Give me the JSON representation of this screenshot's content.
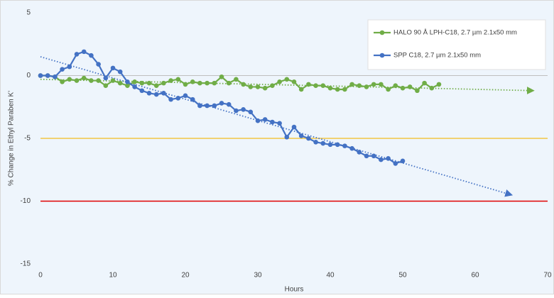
{
  "chart_data": {
    "type": "line",
    "x_label": "Hours",
    "y_label": "% Change in Ethyl Paraben K'",
    "xlim": [
      0,
      70
    ],
    "xticks": [
      0,
      10,
      20,
      30,
      40,
      50,
      60,
      70
    ],
    "ylim": [
      -15,
      5
    ],
    "yticks": [
      5,
      0,
      -5,
      -10,
      -15
    ],
    "legend": "upper right",
    "reference_lines": [
      {
        "value": 0,
        "color": "#bfbfbf"
      },
      {
        "value": -5,
        "color": "#f2c744"
      },
      {
        "value": -10,
        "color": "#e00000"
      }
    ],
    "series": [
      {
        "name": "HALO 90 Å LPH-C18, 2.7 µm 2.1x50 mm",
        "color": "#70ad47",
        "x": [
          0,
          1,
          2,
          3,
          4,
          5,
          6,
          7,
          8,
          9,
          10,
          11,
          12,
          13,
          14,
          15,
          16,
          17,
          18,
          19,
          20,
          21,
          22,
          23,
          24,
          25,
          26,
          27,
          28,
          29,
          30,
          31,
          32,
          33,
          34,
          35,
          36,
          37,
          38,
          39,
          40,
          41,
          42,
          43,
          44,
          45,
          46,
          47,
          48,
          49,
          50,
          51,
          52,
          53,
          54,
          55
        ],
        "values": [
          0,
          0,
          -0.1,
          -0.5,
          -0.3,
          -0.4,
          -0.2,
          -0.4,
          -0.4,
          -0.8,
          -0.4,
          -0.6,
          -0.8,
          -0.5,
          -0.6,
          -0.6,
          -0.8,
          -0.6,
          -0.4,
          -0.3,
          -0.7,
          -0.5,
          -0.6,
          -0.6,
          -0.6,
          -0.1,
          -0.6,
          -0.3,
          -0.7,
          -0.9,
          -0.9,
          -1.0,
          -0.8,
          -0.5,
          -0.3,
          -0.5,
          -1.1,
          -0.7,
          -0.8,
          -0.8,
          -1.0,
          -1.1,
          -1.1,
          -0.7,
          -0.8,
          -0.9,
          -0.7,
          -0.7,
          -1.1,
          -0.8,
          -1.0,
          -0.9,
          -1.2,
          -0.6,
          -1.0,
          -0.7
        ],
        "trendline": {
          "x": [
            0,
            68
          ],
          "values": [
            -0.3,
            -1.2
          ]
        }
      },
      {
        "name": "SPP C18, 2.7 µm 2.1x50 mm",
        "color": "#4472c4",
        "x": [
          0,
          1,
          2,
          3,
          4,
          5,
          6,
          7,
          8,
          9,
          10,
          11,
          12,
          13,
          14,
          15,
          16,
          17,
          18,
          19,
          20,
          21,
          22,
          23,
          24,
          25,
          26,
          27,
          28,
          29,
          30,
          31,
          32,
          33,
          34,
          35,
          36,
          37,
          38,
          39,
          40,
          41,
          42,
          43,
          44,
          45,
          46,
          47,
          48,
          49,
          50
        ],
        "values": [
          0,
          0,
          -0.1,
          0.5,
          0.7,
          1.7,
          1.9,
          1.6,
          0.9,
          -0.2,
          0.6,
          0.3,
          -0.5,
          -0.9,
          -1.2,
          -1.4,
          -1.5,
          -1.4,
          -1.9,
          -1.8,
          -1.6,
          -1.9,
          -2.4,
          -2.4,
          -2.4,
          -2.2,
          -2.3,
          -2.8,
          -2.7,
          -2.9,
          -3.6,
          -3.5,
          -3.7,
          -3.8,
          -4.9,
          -4.1,
          -4.8,
          -5.0,
          -5.3,
          -5.4,
          -5.5,
          -5.5,
          -5.6,
          -5.8,
          -6.1,
          -6.4,
          -6.4,
          -6.7,
          -6.6,
          -7.0,
          -6.8
        ],
        "trendline": {
          "x": [
            0,
            65
          ],
          "values": [
            1.5,
            -9.5
          ]
        }
      }
    ]
  }
}
